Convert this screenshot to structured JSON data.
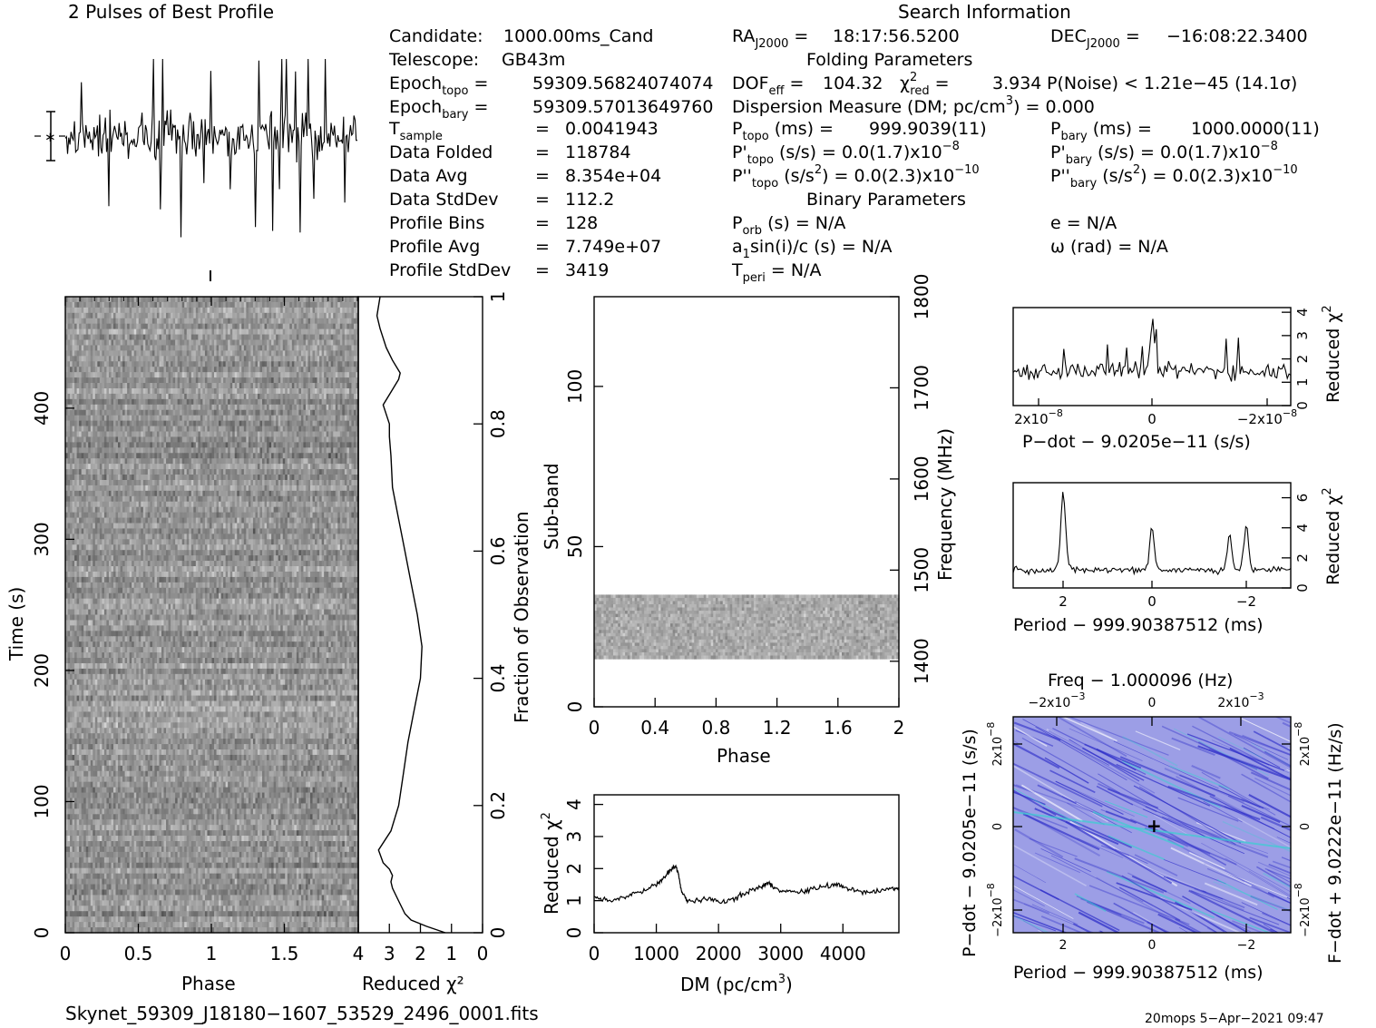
{
  "header": {
    "left_title": "2 Pulses of Best Profile",
    "right_title": "Search Information",
    "footer_file": "Skynet_59309_J18180−1607_53529_2496_0001.fits",
    "footer_stamp": "20mops   5−Apr−2021 09:47"
  },
  "info": {
    "candidate_label": "Candidate:",
    "candidate": "1000.00ms_Cand",
    "telescope_label": "Telescope:",
    "telescope": "GB43m",
    "epoch_topo": "59309.56824074074",
    "epoch_bary": "59309.57013649760",
    "t_sample": "0.0041943",
    "data_folded_label": "Data Folded",
    "data_folded": "118784",
    "data_avg_label": "Data Avg",
    "data_avg": "8.354e+04",
    "data_stddev_label": "Data StdDev",
    "data_stddev": "112.2",
    "profile_bins_label": "Profile Bins",
    "profile_bins": "128",
    "profile_avg_label": "Profile Avg",
    "profile_avg": "7.749e+07",
    "profile_stddev_label": "Profile StdDev",
    "profile_stddev": "3419",
    "ra": "18:17:56.5200",
    "dec": "−16:08:22.3400",
    "folding_title": "Folding Parameters",
    "dof_eff": "104.32",
    "chi2_red": "3.934",
    "p_noise": "P(Noise) < 1.21e−45   (14.1σ)",
    "dm_label": "Dispersion Measure (DM; pc/cm",
    "dm_value": ") = 0.000",
    "p_topo": "999.9039(11)",
    "p_bary": "1000.0000(11)",
    "pd_topo": "0.0(1.7)x10",
    "pd_topo_exp": "−8",
    "pd_bary": "0.0(1.7)x10",
    "pd_bary_exp": "−8",
    "pdd_topo": "0.0(2.3)x10",
    "pdd_topo_exp": "−10",
    "pdd_bary": "0.0(2.3)x10",
    "pdd_bary_exp": "−10",
    "binary_title": "Binary Parameters",
    "p_orb": "N/A",
    "e": "e = N/A",
    "a1sini": "N/A",
    "omega": "ω (rad) = N/A",
    "t_peri": "N/A"
  },
  "chart_data": [
    {
      "id": "pulse_profile",
      "type": "line",
      "title": "2 Pulses of Best Profile",
      "xlabel": "",
      "ylabel": "",
      "description_x": "phase 0–2 (two pulses)",
      "error_bar_marker": "−∗−",
      "noise_like": true
    },
    {
      "id": "time_phase",
      "type": "heatmap",
      "xlabel": "Phase",
      "ylabel": "Time (s)",
      "x_ticks": [
        "0",
        "0.5",
        "1",
        "1.5"
      ],
      "y_ticks": [
        "0",
        "100",
        "200",
        "300",
        "400"
      ],
      "xlim": [
        0,
        2
      ],
      "ylim": [
        0,
        485
      ],
      "colormap": "grayscale"
    },
    {
      "id": "time_chi2",
      "type": "line",
      "xlabel": "Reduced χ²",
      "x_ticks": [
        "4",
        "3",
        "2",
        "1",
        "0"
      ],
      "xlim": [
        4,
        0
      ],
      "right_axis_label": "Fraction of Observation",
      "right_ticks": [
        "0",
        "0.2",
        "0.4",
        "0.6",
        "0.8",
        "1"
      ],
      "points_frac_chi2": [
        [
          0.0,
          1.2
        ],
        [
          0.01,
          1.8
        ],
        [
          0.02,
          2.3
        ],
        [
          0.03,
          2.5
        ],
        [
          0.05,
          2.7
        ],
        [
          0.07,
          2.9
        ],
        [
          0.08,
          2.95
        ],
        [
          0.09,
          2.9
        ],
        [
          0.1,
          3.0
        ],
        [
          0.11,
          3.2
        ],
        [
          0.13,
          3.35
        ],
        [
          0.16,
          2.95
        ],
        [
          0.2,
          2.7
        ],
        [
          0.25,
          2.55
        ],
        [
          0.3,
          2.4
        ],
        [
          0.35,
          2.2
        ],
        [
          0.4,
          2.0
        ],
        [
          0.45,
          1.95
        ],
        [
          0.5,
          2.1
        ],
        [
          0.55,
          2.3
        ],
        [
          0.6,
          2.5
        ],
        [
          0.65,
          2.7
        ],
        [
          0.7,
          2.9
        ],
        [
          0.75,
          2.95
        ],
        [
          0.78,
          3.0
        ],
        [
          0.8,
          3.0
        ],
        [
          0.83,
          3.2
        ],
        [
          0.85,
          2.95
        ],
        [
          0.87,
          2.7
        ],
        [
          0.88,
          2.65
        ],
        [
          0.9,
          2.9
        ],
        [
          0.92,
          3.1
        ],
        [
          0.95,
          3.3
        ],
        [
          0.97,
          3.4
        ],
        [
          1.0,
          3.3
        ]
      ]
    },
    {
      "id": "subband_phase",
      "type": "heatmap",
      "xlabel": "Phase",
      "ylabel": "Sub-band",
      "x_ticks": [
        "0",
        "0.4",
        "0.8",
        "1.2",
        "1.6",
        "2"
      ],
      "y_ticks": [
        "0",
        "50",
        "100"
      ],
      "right_axis_label": "Frequency (MHz)",
      "right_ticks": [
        "1400",
        "1500",
        "1600",
        "1700",
        "1800"
      ],
      "xlim": [
        0,
        2
      ],
      "ylim": [
        0,
        128
      ],
      "filled_subbands": [
        15,
        35
      ],
      "colormap": "grayscale"
    },
    {
      "id": "dm_chi2",
      "type": "line",
      "xlabel": "DM (pc/cm³)",
      "ylabel": "Reduced χ²",
      "x_ticks": [
        "0",
        "1000",
        "2000",
        "3000",
        "4000"
      ],
      "y_ticks": [
        "0",
        "1",
        "2",
        "3",
        "4"
      ],
      "xlim": [
        0,
        4900
      ],
      "ylim": [
        0,
        4.3
      ],
      "points": [
        [
          0,
          1.1
        ],
        [
          200,
          1.0
        ],
        [
          400,
          1.05
        ],
        [
          600,
          1.2
        ],
        [
          800,
          1.3
        ],
        [
          1000,
          1.5
        ],
        [
          1100,
          1.65
        ],
        [
          1200,
          1.9
        ],
        [
          1300,
          2.1
        ],
        [
          1350,
          1.9
        ],
        [
          1400,
          1.3
        ],
        [
          1500,
          1.0
        ],
        [
          1700,
          1.0
        ],
        [
          1900,
          1.05
        ],
        [
          2100,
          0.95
        ],
        [
          2300,
          1.1
        ],
        [
          2500,
          1.3
        ],
        [
          2700,
          1.45
        ],
        [
          2800,
          1.55
        ],
        [
          2900,
          1.4
        ],
        [
          3100,
          1.3
        ],
        [
          3300,
          1.25
        ],
        [
          3500,
          1.35
        ],
        [
          3700,
          1.45
        ],
        [
          3900,
          1.5
        ],
        [
          4000,
          1.45
        ],
        [
          4200,
          1.3
        ],
        [
          4400,
          1.25
        ],
        [
          4600,
          1.3
        ],
        [
          4800,
          1.4
        ],
        [
          4900,
          1.35
        ]
      ]
    },
    {
      "id": "pdot_chi2",
      "type": "line",
      "xlabel": "P−dot − 9.0205e−11 (s/s)",
      "right_axis_label": "Reduced χ²",
      "x_ticks": [
        "2x10",
        "0",
        "−2x10"
      ],
      "x_tick_exp": "−8",
      "y_ticks": [
        "0",
        "1",
        "2",
        "3",
        "4"
      ],
      "ylim": [
        0,
        4.2
      ]
    },
    {
      "id": "period_chi2",
      "type": "line",
      "xlabel": "Period − 999.90387512 (ms)",
      "right_axis_label": "Reduced χ²",
      "x_ticks": [
        "2",
        "0",
        "−2"
      ],
      "y_ticks": [
        "0",
        "2",
        "4",
        "6"
      ],
      "ylim": [
        0,
        7
      ]
    },
    {
      "id": "p_pdot",
      "type": "heatmap",
      "top_label": "Freq − 1.000096 (Hz)",
      "top_ticks": [
        "−2x10",
        "0",
        "2x10"
      ],
      "top_tick_exp": "−3",
      "xlabel": "Period − 999.90387512 (ms)",
      "x_ticks": [
        "2",
        "0",
        "−2"
      ],
      "ylabel": "P−dot − 9.0205e−11 (s/s)",
      "y_ticks": [
        "2x10",
        "0",
        "−2x10"
      ],
      "y_tick_exp": "−8",
      "right_axis_label": "F−dot + 9.0222e−11 (Hz/s)",
      "right_ticks": [
        "−2x10",
        "0",
        "2x10"
      ],
      "right_tick_exp": "−8",
      "colormap": "blue-violet",
      "colors": {
        "base": "#9c9ee6",
        "dark": "#2c2cc8",
        "cyan": "#39d0d0"
      }
    }
  ]
}
